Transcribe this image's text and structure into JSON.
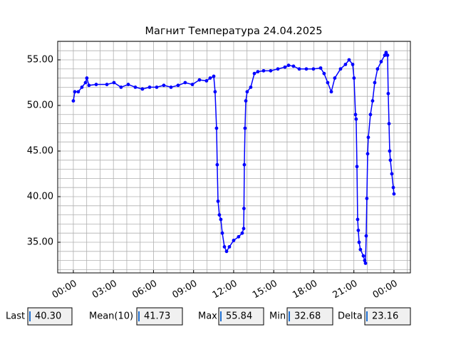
{
  "chart_data": {
    "type": "line",
    "title": "Магнит Температура 24.04.2025",
    "color": "#0000ff",
    "grid": true,
    "minor_grid": {
      "x": 1,
      "y": 1
    },
    "x": [
      0,
      0.11,
      0.37,
      0.64,
      0.91,
      1.01,
      1.17,
      1.71,
      2.51,
      3.04,
      3.57,
      4.11,
      4.64,
      5.17,
      5.71,
      6.24,
      6.77,
      7.31,
      7.84,
      8.37,
      8.91,
      9.44,
      9.97,
      10.24,
      10.51,
      10.61,
      10.72,
      10.77,
      10.83,
      10.93,
      11.04,
      11.15,
      11.31,
      11.47,
      11.68,
      12.0,
      12.37,
      12.64,
      12.75,
      12.77,
      12.8,
      12.85,
      12.91,
      13.01,
      13.28,
      13.55,
      13.81,
      14.24,
      14.77,
      15.31,
      15.84,
      16.11,
      16.48,
      16.91,
      17.44,
      17.97,
      18.51,
      18.77,
      19.04,
      19.31,
      19.57,
      20.0,
      20.37,
      20.64,
      20.91,
      21.01,
      21.12,
      21.17,
      21.23,
      21.28,
      21.33,
      21.39,
      21.49,
      21.71,
      21.81,
      21.87,
      21.92,
      21.97,
      22.03,
      22.08,
      22.24,
      22.4,
      22.56,
      22.77,
      23.04,
      23.31,
      23.41,
      23.52,
      23.57,
      23.63,
      23.68,
      23.73,
      23.84,
      23.95,
      24.0
    ],
    "values": [
      50.5,
      51.5,
      51.5,
      52,
      52.5,
      53,
      52.2,
      52.3,
      52.3,
      52.5,
      52,
      52.3,
      52,
      51.8,
      52,
      52,
      52.2,
      52,
      52.2,
      52.5,
      52.3,
      52.8,
      52.7,
      53,
      53.2,
      51.5,
      47.5,
      43.5,
      39.5,
      38,
      37.5,
      36,
      34.5,
      34,
      34.5,
      35.2,
      35.6,
      36,
      36.5,
      38.7,
      43.5,
      47.5,
      50.5,
      51.5,
      52,
      53.5,
      53.7,
      53.8,
      53.8,
      54,
      54.2,
      54.4,
      54.3,
      54,
      54,
      54,
      54.1,
      53.5,
      52.5,
      51.5,
      53,
      54,
      54.5,
      55,
      54.5,
      53,
      49,
      48.5,
      43.3,
      37.5,
      36.3,
      35,
      34.2,
      33.5,
      33,
      32.7,
      35.7,
      39.8,
      44.7,
      46.5,
      49,
      50.5,
      52.5,
      54,
      54.8,
      55.5,
      55.8,
      55.5,
      51.3,
      48,
      45,
      44,
      42.5,
      41,
      40.3
    ],
    "xlim": [
      -1.17,
      25.23
    ],
    "ylim": [
      31.64,
      57.03
    ],
    "xticks": [
      {
        "value": 0,
        "label": "00:00"
      },
      {
        "value": 3,
        "label": "03:00"
      },
      {
        "value": 6,
        "label": "06:00"
      },
      {
        "value": 9,
        "label": "09:00"
      },
      {
        "value": 12,
        "label": "12:00"
      },
      {
        "value": 15,
        "label": "15:00"
      },
      {
        "value": 18,
        "label": "18:00"
      },
      {
        "value": 21,
        "label": "21:00"
      },
      {
        "value": 24,
        "label": "00:00"
      }
    ],
    "yticks": [
      {
        "value": 35,
        "label": "35.00"
      },
      {
        "value": 40,
        "label": "40.00"
      },
      {
        "value": 45,
        "label": "45.00"
      },
      {
        "value": 50,
        "label": "50.00"
      },
      {
        "value": 55,
        "label": "55.00"
      }
    ]
  },
  "stats": [
    {
      "label": "Last",
      "value": "40.30"
    },
    {
      "label": "Mean(10)",
      "value": "41.73"
    },
    {
      "label": "Max",
      "value": "55.84"
    },
    {
      "label": "Min",
      "value": "32.68"
    },
    {
      "label": "Delta",
      "value": "23.16"
    }
  ]
}
